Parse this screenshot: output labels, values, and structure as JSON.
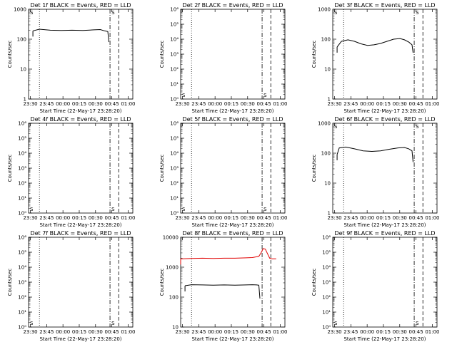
{
  "chart_data": [
    {
      "type": "line",
      "title": "Det 1f BLACK = Events, RED = LLD",
      "xlabel": "Start Time (22-May-17 23:28:20)",
      "ylabel": "Counts/sec",
      "y_scale": "log",
      "ylim": [
        1,
        1000
      ],
      "y_tick_labels": [
        "1",
        "10",
        "100",
        "1000"
      ],
      "x_tick_labels": [
        "23:30",
        "23:45",
        "00:00",
        "00:15",
        "00:30",
        "00:45",
        "01:00"
      ],
      "xlim_minutes": [
        0,
        96
      ],
      "events_series": {
        "x_minutes": [
          4,
          10,
          20,
          30,
          40,
          50,
          60,
          66,
          70,
          73,
          74
        ],
        "y": [
          190,
          215,
          200,
          195,
          200,
          195,
          205,
          210,
          190,
          180,
          80
        ]
      },
      "markers": [
        "S",
        "S"
      ],
      "vlines": [
        {
          "x_minutes": 10,
          "style": "dotted"
        },
        {
          "x_minutes": 75,
          "style": "dashdot"
        },
        {
          "x_minutes": 83,
          "style": "dashed"
        }
      ]
    },
    {
      "type": "line",
      "title": "Det 2f BLACK = Events, RED = LLD",
      "xlabel": "Start Time (22-May-17 23:28:20)",
      "ylabel": "Counts/sec",
      "y_scale": "log",
      "ylim": [
        1,
        1000000
      ],
      "y_tick_labels": [
        "10⁰",
        "10¹",
        "10²",
        "10³",
        "10⁴",
        "10⁵",
        "10⁶"
      ],
      "x_tick_labels": [
        "23:30",
        "23:45",
        "00:00",
        "00:15",
        "00:30",
        "00:45",
        "01:00"
      ],
      "xlim_minutes": [
        0,
        96
      ],
      "markers": [
        "S",
        "S"
      ],
      "vlines": [
        {
          "x_minutes": 10,
          "style": "dotted"
        },
        {
          "x_minutes": 75,
          "style": "dashdot"
        },
        {
          "x_minutes": 83,
          "style": "dashed"
        }
      ]
    },
    {
      "type": "line",
      "title": "Det 3f BLACK = Events, RED = LLD",
      "xlabel": "Start Time (22-May-17 23:28:20)",
      "ylabel": "Counts/sec",
      "y_scale": "log",
      "ylim": [
        1,
        1000
      ],
      "y_tick_labels": [
        "1",
        "10",
        "100",
        "1000"
      ],
      "x_tick_labels": [
        "23:30",
        "23:45",
        "00:00",
        "00:15",
        "00:30",
        "00:45",
        "01:00"
      ],
      "xlim_minutes": [
        0,
        96
      ],
      "events_series": {
        "x_minutes": [
          4,
          8,
          14,
          20,
          26,
          32,
          38,
          44,
          50,
          56,
          62,
          66,
          70,
          73,
          74
        ],
        "y": [
          55,
          85,
          95,
          85,
          70,
          62,
          65,
          72,
          85,
          100,
          105,
          95,
          80,
          65,
          35
        ]
      },
      "markers": [
        "S",
        "S"
      ],
      "vlines": [
        {
          "x_minutes": 10,
          "style": "dotted"
        },
        {
          "x_minutes": 75,
          "style": "dashdot"
        },
        {
          "x_minutes": 83,
          "style": "dashed"
        }
      ]
    },
    {
      "type": "line",
      "title": "Det 4f BLACK = Events, RED = LLD",
      "xlabel": "Start Time (22-May-17 23:28:20)",
      "ylabel": "Counts/sec",
      "y_scale": "log",
      "ylim": [
        1,
        1000000
      ],
      "y_tick_labels": [
        "10⁰",
        "10¹",
        "10²",
        "10³",
        "10⁴",
        "10⁵",
        "10⁶"
      ],
      "x_tick_labels": [
        "23:30",
        "23:45",
        "00:00",
        "00:15",
        "00:30",
        "00:45",
        "01:00"
      ],
      "xlim_minutes": [
        0,
        96
      ],
      "markers": [
        "S",
        "S"
      ],
      "vlines": [
        {
          "x_minutes": 10,
          "style": "dotted"
        },
        {
          "x_minutes": 75,
          "style": "dashdot"
        },
        {
          "x_minutes": 83,
          "style": "dashed"
        }
      ]
    },
    {
      "type": "line",
      "title": "Det 5f BLACK = Events, RED = LLD",
      "xlabel": "Start Time (22-May-17 23:28:20)",
      "ylabel": "Counts/sec",
      "y_scale": "log",
      "ylim": [
        1,
        1000000
      ],
      "y_tick_labels": [
        "10⁰",
        "10¹",
        "10²",
        "10³",
        "10⁴",
        "10⁵",
        "10⁶"
      ],
      "x_tick_labels": [
        "23:30",
        "23:45",
        "00:00",
        "00:15",
        "00:30",
        "00:45",
        "01:00"
      ],
      "xlim_minutes": [
        0,
        96
      ],
      "markers": [
        "S",
        "S"
      ],
      "vlines": [
        {
          "x_minutes": 10,
          "style": "dotted"
        },
        {
          "x_minutes": 75,
          "style": "dashdot"
        },
        {
          "x_minutes": 83,
          "style": "dashed"
        }
      ]
    },
    {
      "type": "line",
      "title": "Det 6f BLACK = Events, RED = LLD",
      "xlabel": "Start Time (22-May-17 23:28:20)",
      "ylabel": "Counts/sec",
      "y_scale": "log",
      "ylim": [
        1,
        1000
      ],
      "y_tick_labels": [
        "1",
        "10",
        "100",
        "1000"
      ],
      "x_tick_labels": [
        "23:30",
        "23:45",
        "00:00",
        "00:15",
        "00:30",
        "00:45",
        "01:00"
      ],
      "xlim_minutes": [
        0,
        96
      ],
      "events_series": {
        "x_minutes": [
          4,
          6,
          12,
          20,
          28,
          36,
          44,
          52,
          60,
          66,
          70,
          73,
          74
        ],
        "y": [
          90,
          150,
          160,
          140,
          120,
          115,
          120,
          135,
          150,
          155,
          140,
          120,
          50
        ]
      },
      "markers": [
        "S",
        "S"
      ],
      "vlines": [
        {
          "x_minutes": 10,
          "style": "dotted"
        },
        {
          "x_minutes": 75,
          "style": "dashdot"
        },
        {
          "x_minutes": 83,
          "style": "dashed"
        }
      ]
    },
    {
      "type": "line",
      "title": "Det 7f BLACK = Events, RED = LLD",
      "xlabel": "Start Time (22-May-17 23:28:20)",
      "ylabel": "Counts/sec",
      "y_scale": "log",
      "ylim": [
        1,
        1000000
      ],
      "y_tick_labels": [
        "10⁰",
        "10¹",
        "10²",
        "10³",
        "10⁴",
        "10⁵",
        "10⁶"
      ],
      "x_tick_labels": [
        "23:30",
        "23:45",
        "00:00",
        "00:15",
        "00:30",
        "00:45",
        "01:00"
      ],
      "xlim_minutes": [
        0,
        96
      ],
      "markers": [
        "S",
        "S"
      ],
      "vlines": [
        {
          "x_minutes": 10,
          "style": "dotted"
        },
        {
          "x_minutes": 75,
          "style": "dashdot"
        },
        {
          "x_minutes": 83,
          "style": "dashed"
        }
      ]
    },
    {
      "type": "line",
      "title": "Det 8f BLACK = Events, RED = LLD",
      "xlabel": "Start Time (22-May-17 23:28:20)",
      "ylabel": "Counts/sec",
      "y_scale": "log",
      "ylim": [
        10,
        10000
      ],
      "y_tick_labels": [
        "10",
        "100",
        "1000",
        "10000"
      ],
      "x_tick_labels": [
        "23:30",
        "23:45",
        "00:00",
        "00:15",
        "00:30",
        "00:45",
        "01:00"
      ],
      "xlim_minutes": [
        0,
        96
      ],
      "events_series": {
        "x_minutes": [
          4,
          10,
          20,
          30,
          40,
          50,
          60,
          66,
          70,
          72,
          73
        ],
        "y": [
          240,
          260,
          255,
          250,
          255,
          250,
          255,
          260,
          255,
          250,
          90
        ]
      },
      "lld_series": {
        "x_minutes": [
          0,
          10,
          20,
          30,
          40,
          50,
          60,
          66,
          72,
          74,
          76,
          78,
          80,
          82,
          84,
          88
        ],
        "y": [
          1900,
          1950,
          2000,
          1950,
          2000,
          2000,
          2050,
          2100,
          2300,
          3000,
          4200,
          4000,
          2800,
          2000,
          1900,
          1900
        ]
      },
      "markers": [],
      "vlines": [
        {
          "x_minutes": 10,
          "style": "dotted"
        },
        {
          "x_minutes": 75,
          "style": "dashdot"
        },
        {
          "x_minutes": 83,
          "style": "dashed"
        }
      ]
    },
    {
      "type": "line",
      "title": "Det 9f BLACK = Events, RED = LLD",
      "xlabel": "Start Time (22-May-17 23:28:20)",
      "ylabel": "Counts/sec",
      "y_scale": "log",
      "ylim": [
        1,
        1000000
      ],
      "y_tick_labels": [
        "10⁰",
        "10¹",
        "10²",
        "10³",
        "10⁴",
        "10⁵",
        "10⁶"
      ],
      "x_tick_labels": [
        "23:30",
        "23:45",
        "00:00",
        "00:15",
        "00:30",
        "00:45",
        "01:00"
      ],
      "xlim_minutes": [
        0,
        96
      ],
      "markers": [
        "S",
        "S"
      ],
      "vlines": [
        {
          "x_minutes": 10,
          "style": "dotted"
        },
        {
          "x_minutes": 75,
          "style": "dashdot"
        },
        {
          "x_minutes": 83,
          "style": "dashed"
        }
      ]
    }
  ],
  "colors": {
    "events": "#000000",
    "lld": "#e00000",
    "background": "#ffffff"
  }
}
